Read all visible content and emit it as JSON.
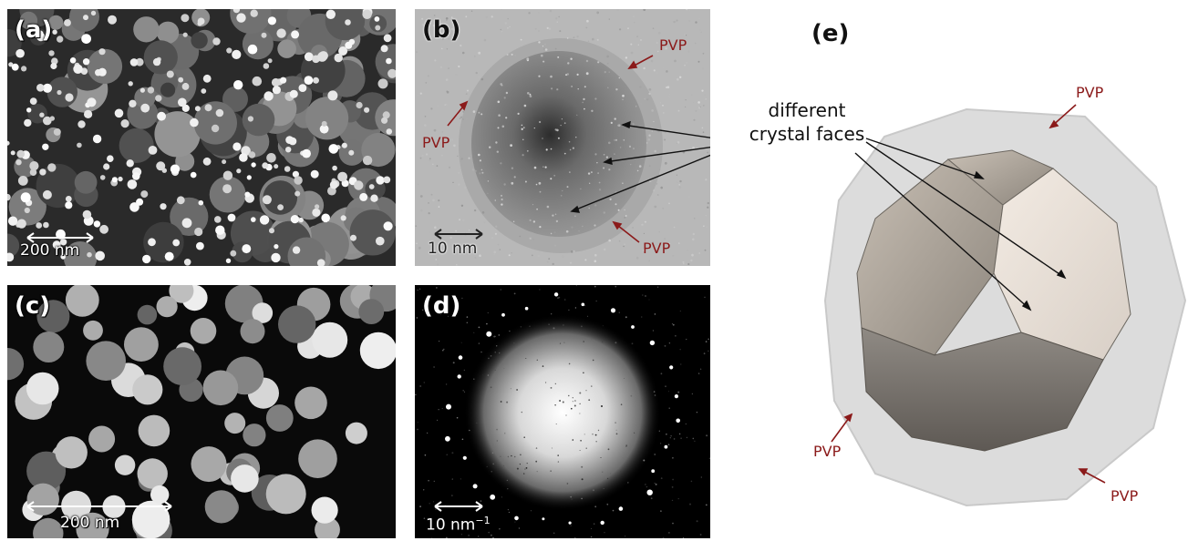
{
  "panels": {
    "a": {
      "label": "(a)",
      "scale": "200 nm"
    },
    "b": {
      "label": "(b)",
      "scale": "10 nm",
      "annotations": [
        "PVP",
        "PVP",
        "PVP"
      ]
    },
    "c": {
      "label": "(c)",
      "scale": "200 nm"
    },
    "d": {
      "label": "(d)",
      "scale": "10 nm",
      "scale_sup": "−1"
    },
    "e": {
      "label": "(e)",
      "faces_text": [
        "different",
        "crystal faces"
      ],
      "annotations": [
        "PVP",
        "PVP",
        "PVP"
      ]
    }
  },
  "colors": {
    "pvp_label": "#8b1a1a",
    "arrow_black": "#111111"
  }
}
